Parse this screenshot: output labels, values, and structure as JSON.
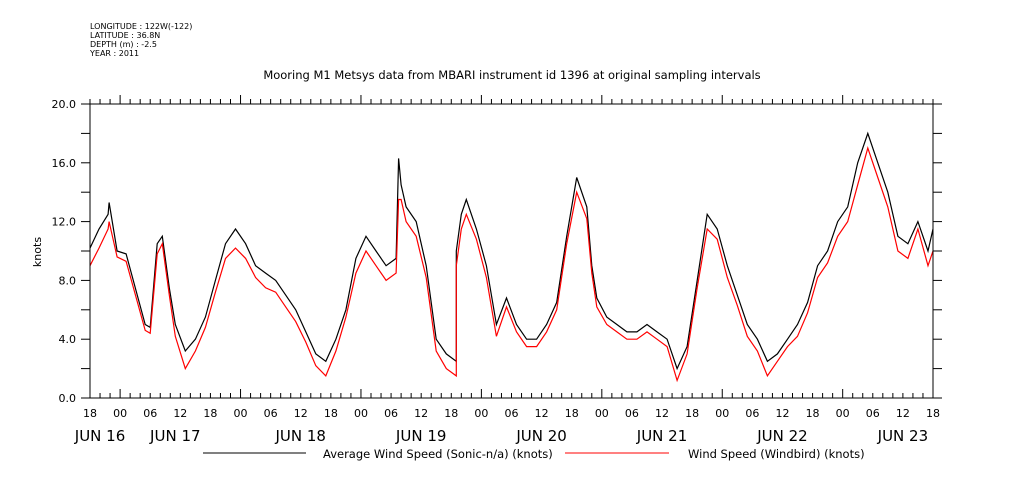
{
  "header": {
    "meta": [
      "LONGITUDE : 122W(-122)",
      "LATITUDE : 36.8N",
      "DEPTH (m) : -2.5",
      "YEAR : 2011"
    ]
  },
  "chart_data": {
    "type": "line",
    "title": "Mooring M1 Metsys data from MBARI instrument id 1396 at original sampling intervals",
    "xlabel": "",
    "ylabel": "knots",
    "ylim": [
      0,
      20
    ],
    "xlim_hours": [
      0,
      168
    ],
    "x_reference": "JUN 16 18:00",
    "y_ticks": [
      "0.0",
      "4.0",
      "8.0",
      "12.0",
      "16.0",
      "20.0"
    ],
    "y_tick_values": [
      0,
      4,
      8,
      12,
      16,
      20
    ],
    "x_tick_labels": [
      "18",
      "00",
      "06",
      "12",
      "18",
      "00",
      "06",
      "12",
      "18",
      "00",
      "06",
      "12",
      "18",
      "00",
      "06",
      "12",
      "18",
      "00",
      "06",
      "12",
      "18",
      "00",
      "06",
      "12",
      "18",
      "00",
      "06",
      "12",
      "18"
    ],
    "date_labels": [
      "JUN 16",
      "JUN 17",
      "JUN 18",
      "JUN 19",
      "JUN 20",
      "JUN 21",
      "JUN 22",
      "JUN 23"
    ],
    "date_label_hours": [
      2,
      17,
      42,
      66,
      90,
      114,
      138,
      162
    ],
    "grid": false,
    "legend_position": "bottom",
    "series": [
      {
        "name": "Average Wind Speed (Sonic-n/a) (knots)",
        "color": "#000000",
        "x": [
          0,
          1.8,
          3.6,
          3.8,
          5.4,
          7.2,
          11,
          12,
          13.4,
          14.4,
          15.8,
          17,
          19,
          21,
          23,
          25,
          27,
          29,
          31,
          33,
          35,
          37,
          39,
          41,
          43,
          45,
          47,
          49,
          51,
          53,
          55,
          57,
          59,
          61,
          61.5,
          62,
          63,
          65,
          67,
          69,
          71,
          73,
          73,
          74,
          75,
          77,
          79,
          81,
          83,
          85,
          87,
          89,
          91,
          93,
          95,
          97,
          99,
          100,
          101,
          103,
          105,
          107,
          109,
          111,
          113,
          115,
          117,
          119,
          121,
          123,
          125,
          127,
          129,
          131,
          133,
          135,
          137,
          139,
          141,
          143,
          145,
          147,
          149,
          151,
          153,
          155,
          157,
          159,
          161,
          163,
          165,
          167,
          168
        ],
        "y": [
          10.2,
          11.5,
          12.5,
          13.3,
          10,
          9.8,
          5.0,
          4.8,
          10.5,
          11,
          7.5,
          5,
          3.2,
          4,
          5.5,
          8,
          10.5,
          11.5,
          10.5,
          9,
          8.5,
          8,
          7,
          6,
          4.5,
          3,
          2.5,
          4,
          6,
          9.5,
          11,
          10,
          9,
          9.5,
          16.3,
          14.5,
          13,
          12,
          9,
          4,
          3,
          2.5,
          10,
          12.5,
          13.5,
          11.5,
          9,
          5,
          6.8,
          5,
          4,
          4,
          5,
          6.5,
          11,
          15,
          13,
          9,
          6.8,
          5.5,
          5,
          4.5,
          4.5,
          5,
          4.5,
          4,
          2,
          3.5,
          8,
          12.5,
          11.5,
          9,
          7,
          5,
          4,
          2.5,
          3,
          4,
          5,
          6.5,
          9,
          10,
          12,
          13,
          16,
          18,
          16,
          14,
          11,
          10.5,
          12,
          10,
          11.5
        ]
      },
      {
        "name": "Wind Speed (Windbird) (knots)",
        "color": "#ff0000",
        "x": [
          0,
          1.8,
          3.6,
          3.8,
          5.4,
          7.2,
          11,
          12,
          13.4,
          14.4,
          15.8,
          17,
          19,
          21,
          23,
          25,
          27,
          29,
          31,
          33,
          35,
          37,
          39,
          41,
          43,
          45,
          47,
          49,
          51,
          53,
          55,
          57,
          59,
          61,
          61.5,
          62,
          63,
          65,
          67,
          69,
          71,
          73,
          73,
          74,
          75,
          77,
          79,
          81,
          83,
          85,
          87,
          89,
          91,
          93,
          95,
          97,
          99,
          100,
          101,
          103,
          105,
          107,
          109,
          111,
          113,
          115,
          117,
          119,
          121,
          123,
          125,
          127,
          129,
          131,
          133,
          135,
          137,
          139,
          141,
          143,
          145,
          147,
          149,
          151,
          153,
          155,
          157,
          159,
          161,
          163,
          165,
          167,
          168
        ],
        "y": [
          9.0,
          10.2,
          11.5,
          12.0,
          9.6,
          9.3,
          4.6,
          4.4,
          9.8,
          10.5,
          7.0,
          4.2,
          2.0,
          3.2,
          4.8,
          7.2,
          9.5,
          10.2,
          9.5,
          8.2,
          7.5,
          7.2,
          6.2,
          5.2,
          3.8,
          2.2,
          1.5,
          3.2,
          5.5,
          8.5,
          10,
          9,
          8,
          8.5,
          13.5,
          13.5,
          12,
          11,
          8.2,
          3.2,
          2,
          1.5,
          9,
          11.5,
          12.5,
          10.8,
          8.2,
          4.2,
          6.2,
          4.5,
          3.5,
          3.5,
          4.5,
          6,
          10.5,
          14,
          12.2,
          8.5,
          6.2,
          5,
          4.5,
          4,
          4,
          4.5,
          4,
          3.5,
          1.2,
          3,
          7.5,
          11.5,
          10.8,
          8.2,
          6.3,
          4.2,
          3.2,
          1.5,
          2.5,
          3.5,
          4.2,
          5.8,
          8.2,
          9.2,
          11,
          12,
          14.5,
          17,
          15,
          13,
          10,
          9.5,
          11.5,
          9,
          10
        ]
      }
    ]
  }
}
